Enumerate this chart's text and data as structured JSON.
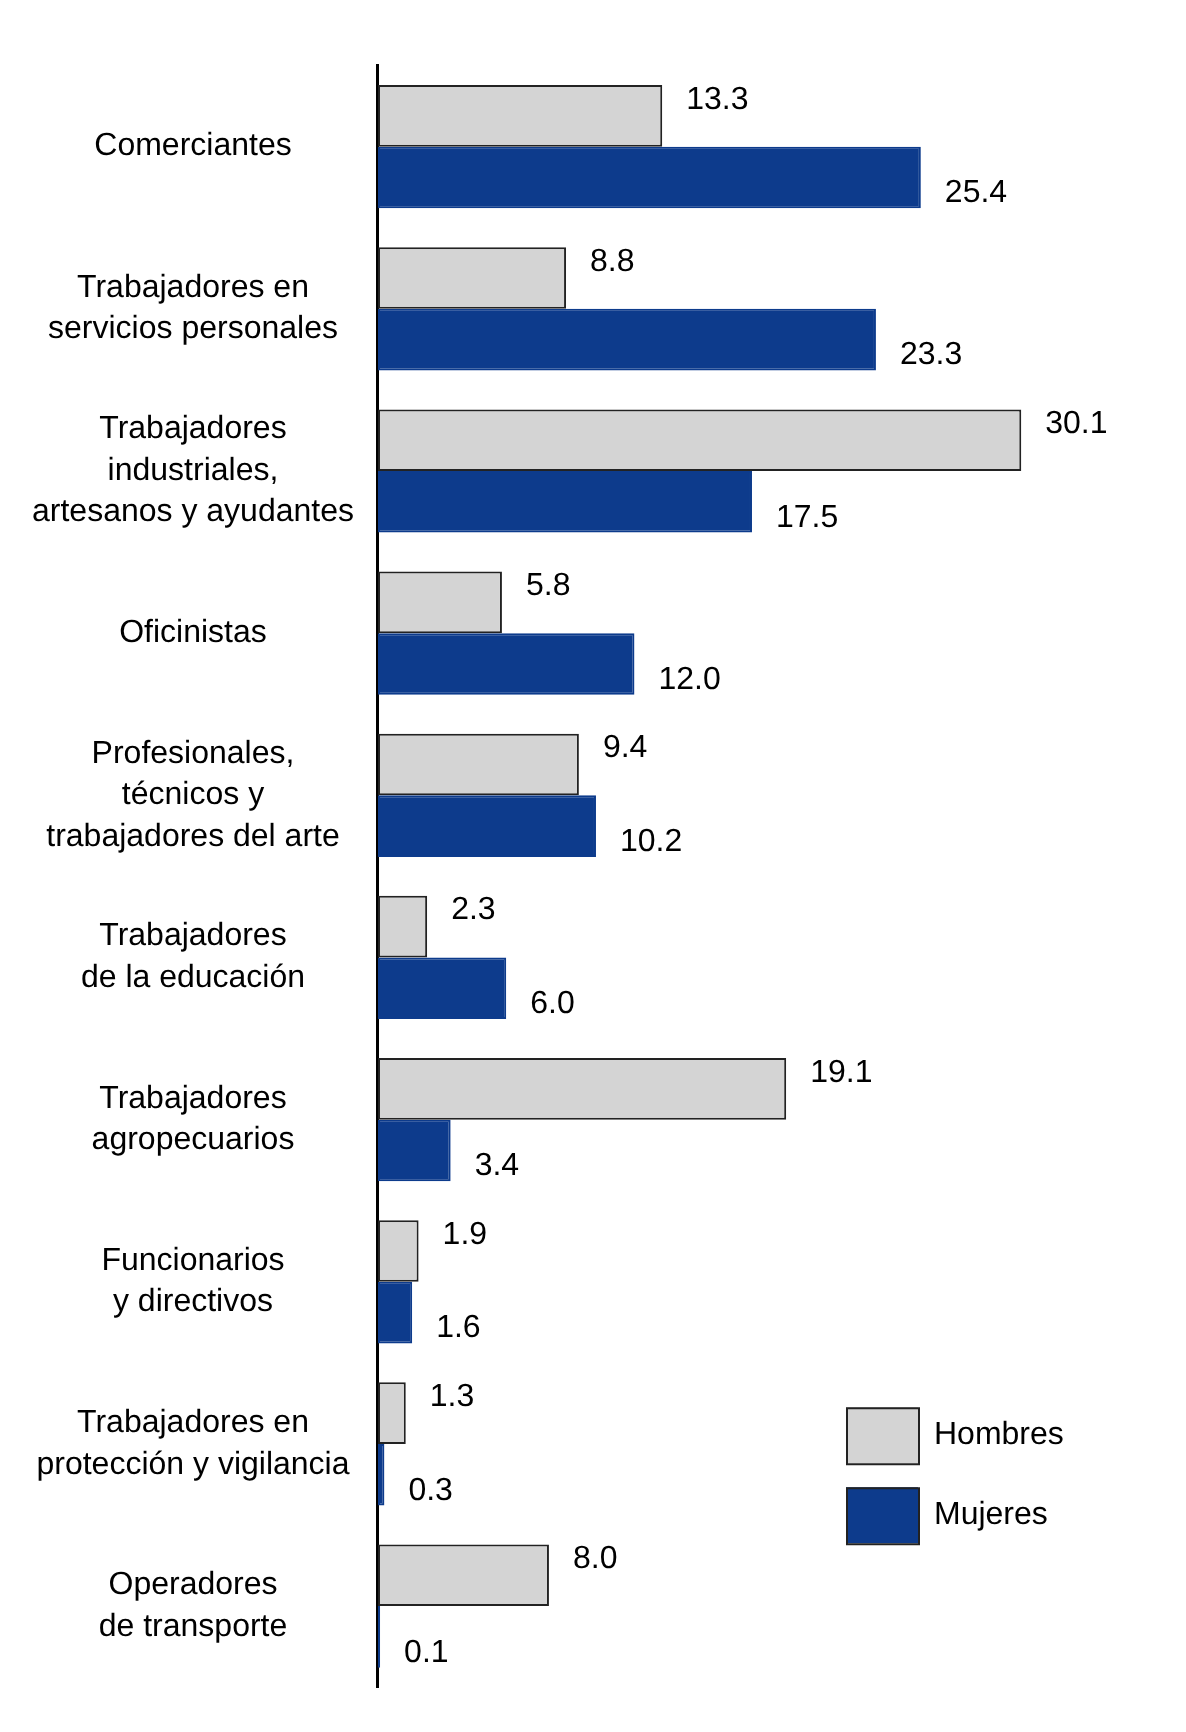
{
  "chart_data": {
    "type": "bar",
    "orientation": "horizontal",
    "categories": [
      "Comerciantes",
      "Trabajadores en\nservicios personales",
      "Trabajadores\nindustriales,\nartesanos y ayudantes",
      "Oficinistas",
      "Profesionales,\ntécnicos y\ntrabajadores del arte",
      "Trabajadores\nde la educación",
      "Trabajadores\nagropecuarios",
      "Funcionarios\ny directivos",
      "Trabajadores en\nprotección y vigilancia",
      "Operadores\nde transporte"
    ],
    "series": [
      {
        "name": "Hombres",
        "color": "#d4d4d4",
        "values": [
          13.3,
          8.8,
          30.1,
          5.8,
          9.4,
          2.3,
          19.1,
          1.9,
          1.3,
          8.0
        ],
        "value_labels": [
          "13.3",
          "8.8",
          "30.1",
          "5.8",
          "9.4",
          "2.3",
          "19.1",
          "1.9",
          "1.3",
          "8.0"
        ]
      },
      {
        "name": "Mujeres",
        "color": "#0d3b8c",
        "values": [
          25.4,
          23.3,
          17.5,
          12.0,
          10.2,
          6.0,
          3.4,
          1.6,
          0.3,
          0.1
        ],
        "value_labels": [
          "25.4",
          "23.3",
          "17.5",
          "12.0",
          "10.2",
          "6.0",
          "3.4",
          "1.6",
          "0.3",
          "0.1"
        ]
      }
    ],
    "tick_labels": "y",
    "legend": "bottom right"
  }
}
